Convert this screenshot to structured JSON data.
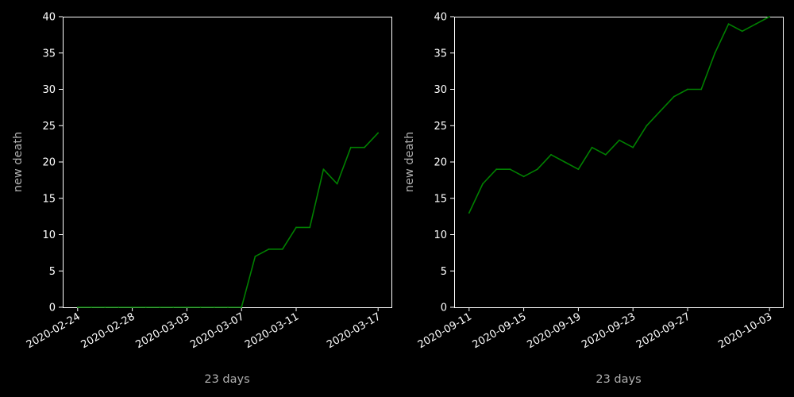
{
  "chart_data": [
    {
      "type": "line",
      "title": "",
      "xlabel": "23 days",
      "ylabel": "new death",
      "ylim": [
        0,
        40
      ],
      "yticks": [
        0,
        5,
        10,
        15,
        20,
        25,
        30,
        35,
        40
      ],
      "x_start": "2020-02-24",
      "xtick_labels": [
        "2020-02-24",
        "2020-02-28",
        "2020-03-03",
        "2020-03-07",
        "2020-03-11",
        "2020-03-17"
      ],
      "grid": false,
      "color": "#008000",
      "series": [
        {
          "x": [
            "2020-02-24",
            "2020-02-25",
            "2020-02-26",
            "2020-02-27",
            "2020-02-28",
            "2020-02-29",
            "2020-03-01",
            "2020-03-02",
            "2020-03-03",
            "2020-03-04",
            "2020-03-05",
            "2020-03-06",
            "2020-03-07",
            "2020-03-08",
            "2020-03-09",
            "2020-03-10",
            "2020-03-11",
            "2020-03-12",
            "2020-03-13",
            "2020-03-14",
            "2020-03-15",
            "2020-03-16",
            "2020-03-17"
          ],
          "values": [
            0,
            0,
            0,
            0,
            0,
            0,
            0,
            0,
            0,
            0,
            0,
            0,
            0,
            7,
            8,
            8,
            11,
            11,
            19,
            17,
            22,
            22,
            24
          ]
        }
      ]
    },
    {
      "type": "line",
      "title": "",
      "xlabel": "23 days",
      "ylabel": "new death",
      "ylim": [
        0,
        40
      ],
      "yticks": [
        0,
        5,
        10,
        15,
        20,
        25,
        30,
        35,
        40
      ],
      "x_start": "2020-09-11",
      "xtick_labels": [
        "2020-09-11",
        "2020-09-15",
        "2020-09-19",
        "2020-09-23",
        "2020-09-27",
        "2020-10-03"
      ],
      "grid": false,
      "color": "#008000",
      "series": [
        {
          "x": [
            "2020-09-11",
            "2020-09-12",
            "2020-09-13",
            "2020-09-14",
            "2020-09-15",
            "2020-09-16",
            "2020-09-17",
            "2020-09-18",
            "2020-09-19",
            "2020-09-20",
            "2020-09-21",
            "2020-09-22",
            "2020-09-23",
            "2020-09-24",
            "2020-09-25",
            "2020-09-26",
            "2020-09-27",
            "2020-09-28",
            "2020-09-29",
            "2020-09-30",
            "2020-10-01",
            "2020-10-02",
            "2020-10-03"
          ],
          "values": [
            13,
            17,
            19,
            19,
            18,
            19,
            21,
            20,
            19,
            22,
            21,
            23,
            22,
            25,
            27,
            29,
            30,
            30,
            35,
            39,
            38,
            39,
            40
          ]
        }
      ]
    }
  ]
}
